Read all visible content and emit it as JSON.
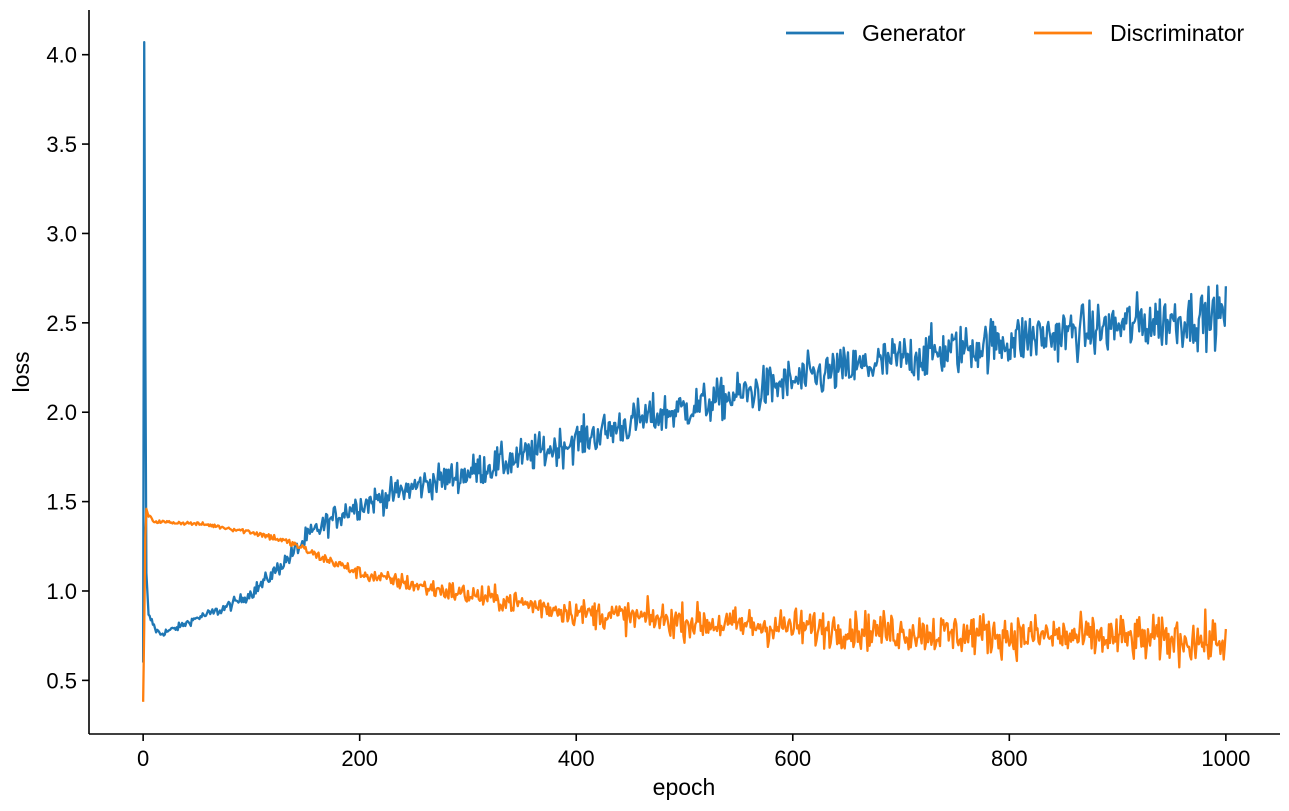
{
  "chart_data": {
    "type": "line",
    "title": "",
    "xlabel": "epoch",
    "ylabel": "loss",
    "xlim": [
      -50,
      1050
    ],
    "ylim": [
      0.2,
      4.25
    ],
    "xticks": [
      0,
      200,
      400,
      600,
      800,
      1000
    ],
    "xtick_labels": [
      "0",
      "200",
      "400",
      "600",
      "800",
      "1000"
    ],
    "yticks": [
      0.5,
      1.0,
      1.5,
      2.0,
      2.5,
      3.0,
      3.5,
      4.0
    ],
    "ytick_labels": [
      "0.5",
      "1.0",
      "1.5",
      "2.0",
      "2.5",
      "3.0",
      "3.5",
      "4.0"
    ],
    "grid": false,
    "legend_position": "top-right",
    "series": [
      {
        "name": "Generator",
        "color": "#1f77b4",
        "x": [
          0,
          1,
          2,
          3,
          5,
          8,
          12,
          16,
          20,
          30,
          40,
          50,
          60,
          70,
          80,
          90,
          100,
          110,
          120,
          130,
          140,
          150,
          160,
          170,
          180,
          190,
          200,
          220,
          240,
          260,
          280,
          300,
          320,
          340,
          360,
          380,
          400,
          420,
          440,
          460,
          480,
          500,
          520,
          540,
          560,
          580,
          600,
          620,
          640,
          660,
          680,
          700,
          720,
          740,
          760,
          780,
          800,
          820,
          840,
          860,
          880,
          900,
          920,
          940,
          960,
          980,
          1000
        ],
        "values": [
          0.6,
          4.07,
          2.4,
          1.1,
          0.86,
          0.83,
          0.78,
          0.76,
          0.77,
          0.79,
          0.82,
          0.85,
          0.87,
          0.89,
          0.92,
          0.95,
          0.99,
          1.04,
          1.1,
          1.16,
          1.22,
          1.29,
          1.34,
          1.38,
          1.42,
          1.46,
          1.48,
          1.52,
          1.56,
          1.6,
          1.63,
          1.66,
          1.7,
          1.73,
          1.77,
          1.8,
          1.84,
          1.88,
          1.92,
          1.96,
          1.99,
          2.02,
          2.05,
          2.08,
          2.11,
          2.14,
          2.17,
          2.2,
          2.23,
          2.25,
          2.27,
          2.3,
          2.32,
          2.34,
          2.36,
          2.38,
          2.4,
          2.42,
          2.43,
          2.45,
          2.46,
          2.48,
          2.5,
          2.51,
          2.52,
          2.53,
          2.55
        ],
        "noise": [
          0,
          0,
          0,
          0,
          0.02,
          0.02,
          0.02,
          0.02,
          0.02,
          0.02,
          0.02,
          0.02,
          0.025,
          0.03,
          0.03,
          0.03,
          0.035,
          0.04,
          0.04,
          0.045,
          0.05,
          0.06,
          0.06,
          0.065,
          0.07,
          0.07,
          0.07,
          0.075,
          0.08,
          0.08,
          0.085,
          0.09,
          0.09,
          0.095,
          0.1,
          0.1,
          0.1,
          0.1,
          0.105,
          0.11,
          0.11,
          0.11,
          0.11,
          0.11,
          0.115,
          0.12,
          0.12,
          0.12,
          0.12,
          0.12,
          0.125,
          0.13,
          0.13,
          0.13,
          0.13,
          0.135,
          0.14,
          0.14,
          0.14,
          0.14,
          0.14,
          0.145,
          0.15,
          0.15,
          0.15,
          0.15,
          0.15
        ]
      },
      {
        "name": "Discriminator",
        "color": "#ff7f0e",
        "x": [
          0,
          1,
          2,
          3,
          5,
          10,
          20,
          40,
          60,
          80,
          100,
          120,
          140,
          160,
          180,
          200,
          220,
          240,
          260,
          280,
          300,
          320,
          340,
          360,
          380,
          400,
          420,
          440,
          460,
          480,
          500,
          520,
          540,
          560,
          580,
          600,
          620,
          640,
          660,
          680,
          700,
          720,
          740,
          760,
          780,
          800,
          820,
          840,
          860,
          880,
          900,
          920,
          940,
          960,
          980,
          1000
        ],
        "values": [
          0.38,
          0.8,
          1.3,
          1.46,
          1.42,
          1.39,
          1.385,
          1.38,
          1.37,
          1.35,
          1.33,
          1.3,
          1.26,
          1.2,
          1.15,
          1.1,
          1.07,
          1.05,
          1.02,
          1.0,
          0.98,
          0.96,
          0.94,
          0.92,
          0.9,
          0.88,
          0.87,
          0.86,
          0.85,
          0.84,
          0.83,
          0.82,
          0.81,
          0.81,
          0.8,
          0.8,
          0.79,
          0.79,
          0.78,
          0.78,
          0.77,
          0.77,
          0.76,
          0.76,
          0.76,
          0.75,
          0.75,
          0.75,
          0.74,
          0.74,
          0.74,
          0.73,
          0.73,
          0.73,
          0.72,
          0.72
        ],
        "noise": [
          0,
          0,
          0,
          0,
          0.01,
          0.01,
          0.01,
          0.01,
          0.01,
          0.012,
          0.015,
          0.02,
          0.02,
          0.025,
          0.03,
          0.035,
          0.04,
          0.045,
          0.05,
          0.055,
          0.06,
          0.06,
          0.06,
          0.065,
          0.07,
          0.07,
          0.075,
          0.08,
          0.08,
          0.085,
          0.09,
          0.09,
          0.09,
          0.095,
          0.1,
          0.1,
          0.1,
          0.1,
          0.1,
          0.1,
          0.1,
          0.105,
          0.11,
          0.11,
          0.11,
          0.11,
          0.11,
          0.11,
          0.11,
          0.115,
          0.12,
          0.12,
          0.12,
          0.12,
          0.12,
          0.12
        ]
      }
    ]
  }
}
